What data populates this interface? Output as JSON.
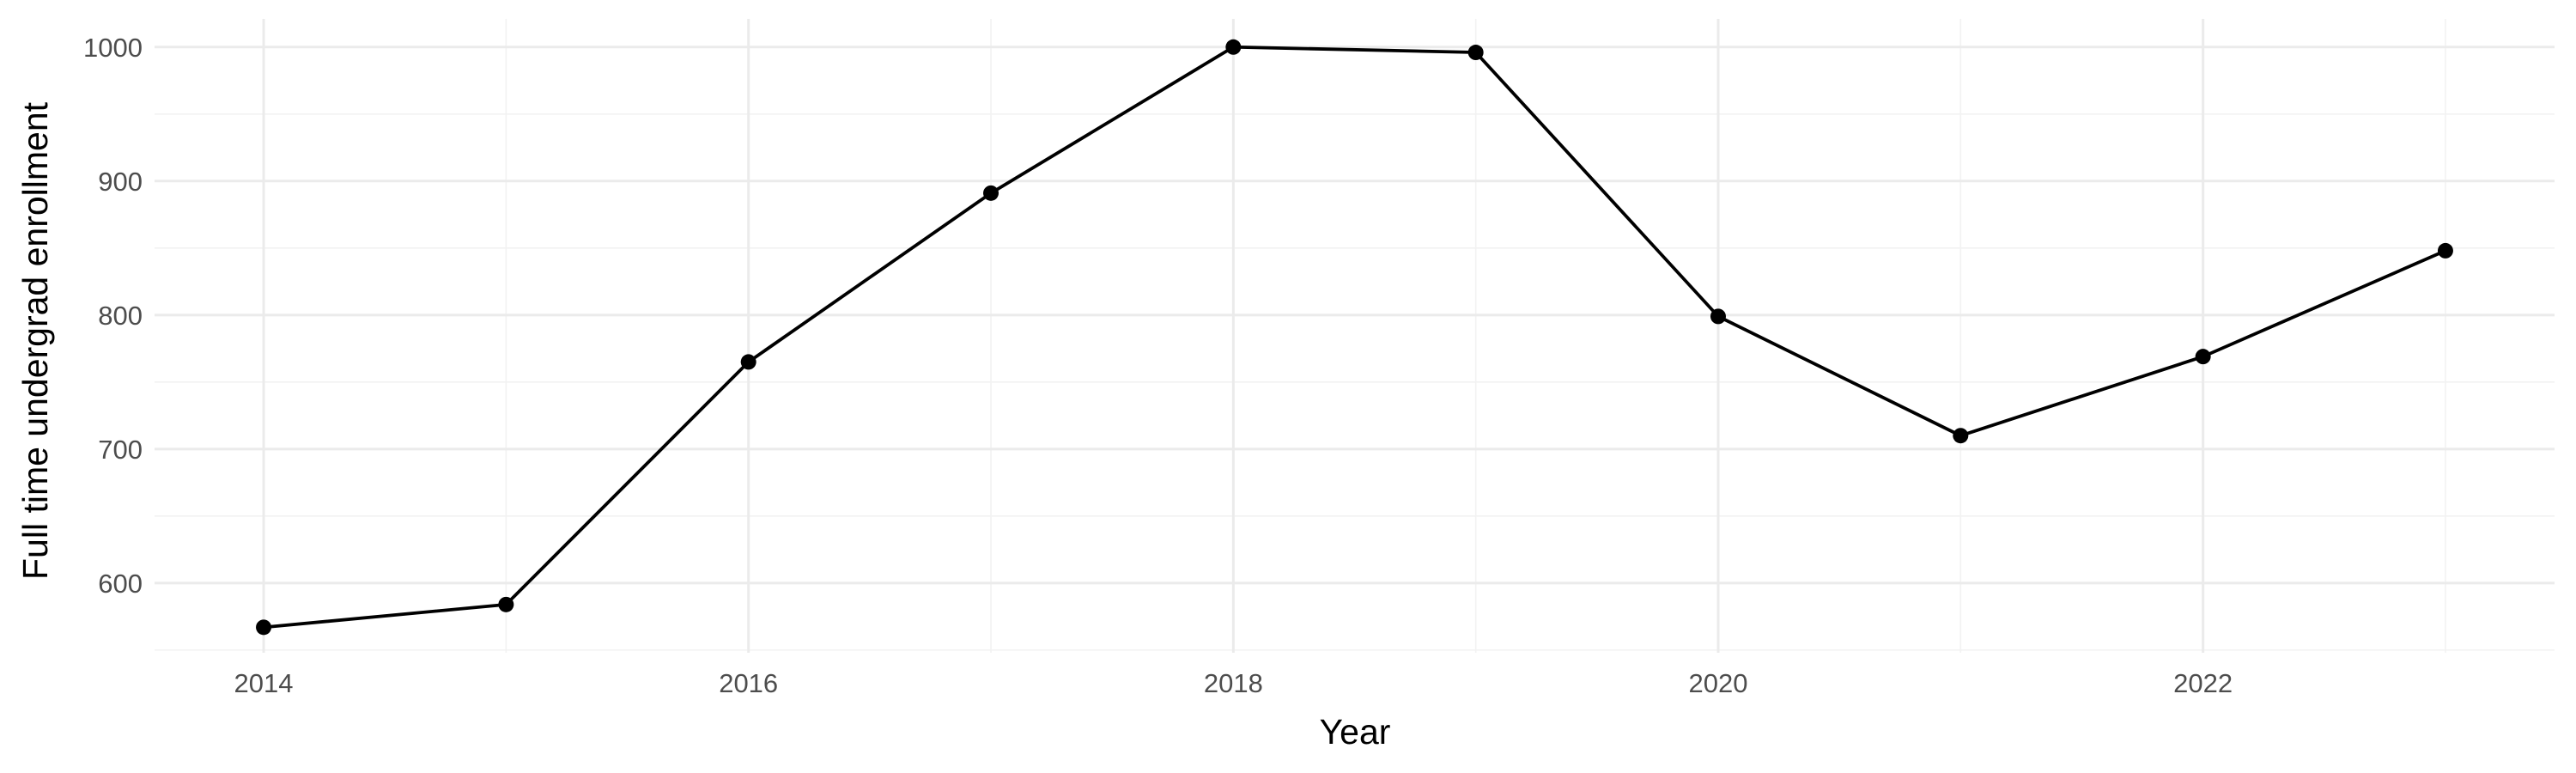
{
  "chart_data": {
    "type": "line",
    "title": "",
    "xlabel": "Year",
    "ylabel": "Full time undergrad enrollment",
    "x": [
      2014,
      2015,
      2016,
      2017,
      2018,
      2019,
      2020,
      2021,
      2022,
      2023
    ],
    "series": [
      {
        "values": [
          567,
          584,
          765,
          891,
          1000,
          996,
          799,
          710,
          769,
          848
        ]
      }
    ],
    "xlim": [
      2013.55,
      2023.45
    ],
    "ylim": [
      548,
      1021
    ],
    "x_ticks": [
      2014,
      2016,
      2018,
      2020,
      2022
    ],
    "x_tick_labels": [
      "2014",
      "2016",
      "2018",
      "2020",
      "2022"
    ],
    "x_minor_ticks": [
      2015,
      2017,
      2019,
      2021,
      2023
    ],
    "y_ticks": [
      600,
      700,
      800,
      900,
      1000
    ],
    "y_tick_labels": [
      "600",
      "700",
      "800",
      "900",
      "1000"
    ],
    "y_minor_ticks": [
      550,
      650,
      750,
      850,
      950
    ],
    "grid": true,
    "legend": "none",
    "colors": {
      "line": "#000000",
      "grid_major": "#ebebeb",
      "grid_minor": "#f2f2f2",
      "tick_text": "#4d4d4d"
    }
  }
}
